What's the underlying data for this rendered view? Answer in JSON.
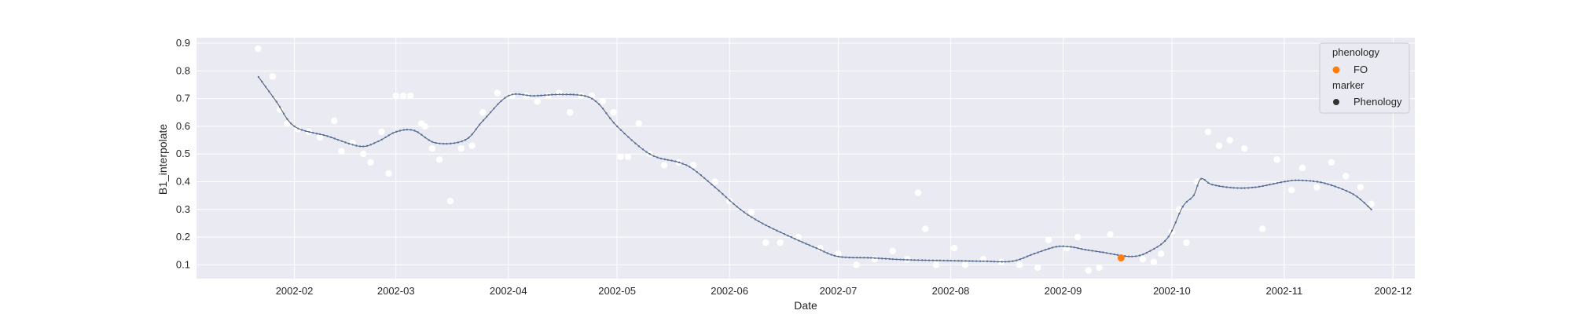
{
  "chart_data": {
    "type": "line",
    "xlabel": "Date",
    "ylabel": "B1_interpolate",
    "x_range": [
      "2002-01-05",
      "2002-12-07"
    ],
    "ylim": [
      0.05,
      0.92
    ],
    "x_ticks": [
      "2002-02",
      "2002-03",
      "2002-04",
      "2002-05",
      "2002-06",
      "2002-07",
      "2002-08",
      "2002-09",
      "2002-10",
      "2002-11",
      "2002-12"
    ],
    "y_ticks": [
      0.1,
      0.2,
      0.3,
      0.4,
      0.5,
      0.6,
      0.7,
      0.8,
      0.9
    ],
    "y_tick_labels": [
      "0.1",
      "0.2",
      "0.3",
      "0.4",
      "0.5",
      "0.6",
      "0.7",
      "0.8",
      "0.9"
    ],
    "grid": true,
    "background": "#eaeaf2",
    "line_color": "#555555",
    "marker_color": "#4c72b0",
    "raw_color": "#ffffff",
    "fo_color": "#ff7f0e",
    "interpolated_series": {
      "name": "",
      "x": [
        "2002-01-22",
        "2002-01-27",
        "2002-02-01",
        "2002-02-10",
        "2002-02-19",
        "2002-02-24",
        "2002-03-01",
        "2002-03-06",
        "2002-03-12",
        "2002-03-20",
        "2002-03-25",
        "2002-04-01",
        "2002-04-08",
        "2002-04-15",
        "2002-04-22",
        "2002-04-26",
        "2002-05-01",
        "2002-05-10",
        "2002-05-18",
        "2002-05-22",
        "2002-05-28",
        "2002-06-04",
        "2002-06-10",
        "2002-06-18",
        "2002-06-25",
        "2002-07-01",
        "2002-07-10",
        "2002-07-20",
        "2002-08-01",
        "2002-08-10",
        "2002-08-18",
        "2002-08-24",
        "2002-08-30",
        "2002-09-03",
        "2002-09-07",
        "2002-09-12",
        "2002-09-20",
        "2002-09-25",
        "2002-09-30",
        "2002-10-04",
        "2002-10-07",
        "2002-10-09",
        "2002-10-12",
        "2002-10-18",
        "2002-10-24",
        "2002-11-01",
        "2002-11-05",
        "2002-11-12",
        "2002-11-20",
        "2002-11-25"
      ],
      "y": [
        0.78,
        0.69,
        0.6,
        0.565,
        0.528,
        0.545,
        0.58,
        0.585,
        0.54,
        0.55,
        0.62,
        0.71,
        0.71,
        0.715,
        0.71,
        0.68,
        0.6,
        0.5,
        0.47,
        0.445,
        0.38,
        0.3,
        0.25,
        0.2,
        0.16,
        0.13,
        0.125,
        0.118,
        0.115,
        0.113,
        0.113,
        0.14,
        0.165,
        0.165,
        0.155,
        0.145,
        0.13,
        0.15,
        0.2,
        0.31,
        0.35,
        0.41,
        0.39,
        0.378,
        0.38,
        0.4,
        0.405,
        0.395,
        0.355,
        0.3
      ]
    },
    "raw_points": {
      "x": [
        "2002-01-22",
        "2002-01-26",
        "2002-01-28",
        "2002-01-30",
        "2002-02-02",
        "2002-02-05",
        "2002-02-08",
        "2002-02-12",
        "2002-02-14",
        "2002-02-17",
        "2002-02-20",
        "2002-02-22",
        "2002-02-25",
        "2002-02-27",
        "2002-03-01",
        "2002-03-03",
        "2002-03-05",
        "2002-03-08",
        "2002-03-09",
        "2002-03-11",
        "2002-03-13",
        "2002-03-16",
        "2002-03-19",
        "2002-03-22",
        "2002-03-25",
        "2002-03-29",
        "2002-04-02",
        "2002-04-06",
        "2002-04-09",
        "2002-04-12",
        "2002-04-15",
        "2002-04-18",
        "2002-04-21",
        "2002-04-24",
        "2002-04-27",
        "2002-04-30",
        "2002-05-02",
        "2002-05-04",
        "2002-05-07",
        "2002-05-10",
        "2002-05-14",
        "2002-05-18",
        "2002-05-22",
        "2002-05-28",
        "2002-06-01",
        "2002-06-07",
        "2002-06-11",
        "2002-06-15",
        "2002-06-20",
        "2002-06-26",
        "2002-07-01",
        "2002-07-06",
        "2002-07-11",
        "2002-07-16",
        "2002-07-20",
        "2002-07-23",
        "2002-07-25",
        "2002-07-28",
        "2002-08-02",
        "2002-08-05",
        "2002-08-10",
        "2002-08-15",
        "2002-08-20",
        "2002-08-25",
        "2002-08-28",
        "2002-09-02",
        "2002-09-05",
        "2002-09-08",
        "2002-09-11",
        "2002-09-14",
        "2002-09-23",
        "2002-09-26",
        "2002-09-28",
        "2002-10-01",
        "2002-10-03",
        "2002-10-05",
        "2002-10-08",
        "2002-10-11",
        "2002-10-14",
        "2002-10-17",
        "2002-10-21",
        "2002-10-26",
        "2002-10-30",
        "2002-11-03",
        "2002-11-06",
        "2002-11-10",
        "2002-11-14",
        "2002-11-18",
        "2002-11-22",
        "2002-11-25"
      ],
      "y": [
        0.88,
        0.78,
        0.66,
        0.61,
        0.59,
        0.58,
        0.56,
        0.62,
        0.51,
        0.54,
        0.5,
        0.47,
        0.58,
        0.43,
        0.71,
        0.71,
        0.71,
        0.61,
        0.6,
        0.52,
        0.48,
        0.33,
        0.52,
        0.53,
        0.65,
        0.72,
        0.71,
        0.71,
        0.69,
        0.71,
        0.72,
        0.65,
        0.71,
        0.71,
        0.69,
        0.65,
        0.49,
        0.49,
        0.61,
        0.5,
        0.46,
        0.47,
        0.46,
        0.4,
        0.33,
        0.29,
        0.18,
        0.18,
        0.2,
        0.16,
        0.14,
        0.1,
        0.12,
        0.15,
        0.12,
        0.36,
        0.23,
        0.1,
        0.16,
        0.1,
        0.12,
        0.11,
        0.1,
        0.09,
        0.19,
        0.16,
        0.2,
        0.08,
        0.09,
        0.21,
        0.12,
        0.11,
        0.14,
        0.22,
        0.3,
        0.18,
        0.4,
        0.58,
        0.53,
        0.55,
        0.52,
        0.23,
        0.48,
        0.37,
        0.45,
        0.38,
        0.47,
        0.42,
        0.38,
        0.32
      ]
    },
    "phenology_points": [
      {
        "x": "2002-09-17",
        "y": 0.125,
        "label": "FO"
      }
    ],
    "legend": {
      "position": "top-right",
      "hue_title": "phenology",
      "hue_entries": [
        "FO"
      ],
      "style_title": "marker",
      "style_entries": [
        "Phenology"
      ]
    }
  }
}
